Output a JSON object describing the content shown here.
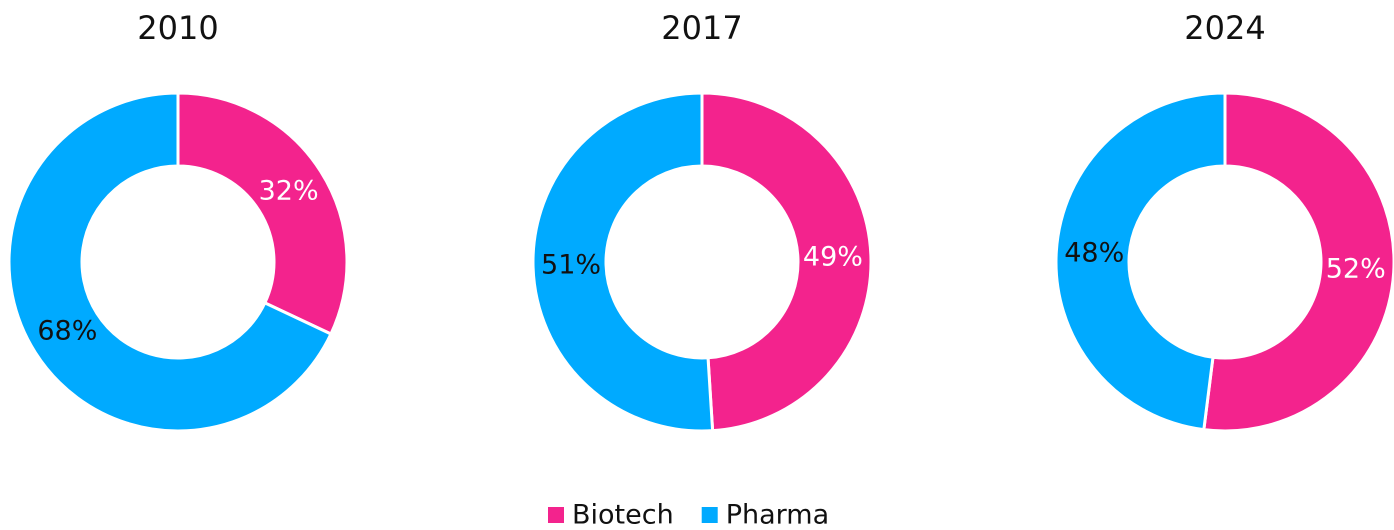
{
  "chart_data": [
    {
      "type": "pie",
      "title": "2010",
      "categories": [
        "Biotech",
        "Pharma"
      ],
      "values": [
        32,
        68
      ],
      "value_labels": [
        "32%",
        "68%"
      ],
      "colors": [
        "#f3238d",
        "#00aaff"
      ],
      "donut": true
    },
    {
      "type": "pie",
      "title": "2017",
      "categories": [
        "Biotech",
        "Pharma"
      ],
      "values": [
        49,
        51
      ],
      "value_labels": [
        "49%",
        "51%"
      ],
      "colors": [
        "#f3238d",
        "#00aaff"
      ],
      "donut": true
    },
    {
      "type": "pie",
      "title": "2024",
      "categories": [
        "Biotech",
        "Pharma"
      ],
      "values": [
        52,
        48
      ],
      "value_labels": [
        "52%",
        "48%"
      ],
      "colors": [
        "#f3238d",
        "#00aaff"
      ],
      "donut": true
    }
  ]
}
